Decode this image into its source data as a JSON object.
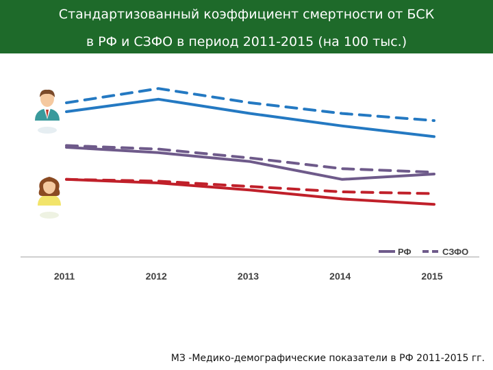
{
  "header": {
    "title_line1": "Стандартизованный коэффициент смертности от БСК",
    "title_line2": "в РФ  и СЗФО в период 2011-2015 (на 100 тыс.)"
  },
  "source": "МЗ -Медико-демографические показатели в РФ 2011-2015 гг.",
  "icons": {
    "male": "male-person-icon",
    "female": "female-person-icon"
  },
  "chart_data": {
    "type": "line",
    "categories": [
      "2011",
      "2012",
      "2013",
      "2014",
      "2015"
    ],
    "xlabel": "",
    "ylabel": "",
    "ylim": [
      0,
      100
    ],
    "grid": false,
    "legend": {
      "position": "bottom-right",
      "entries": [
        "РФ",
        "СЗФО"
      ]
    },
    "colors": {
      "male": "#2479c2",
      "total": "#6e5a8a",
      "female": "#c0202a"
    },
    "series": [
      {
        "group": "male",
        "legend_key": "РФ",
        "style": "solid",
        "values": [
          75,
          82,
          74,
          67,
          61
        ]
      },
      {
        "group": "male",
        "legend_key": "СЗФО",
        "style": "dashed",
        "values": [
          80,
          88,
          80,
          74,
          70
        ]
      },
      {
        "group": "total",
        "legend_key": "РФ",
        "style": "solid",
        "values": [
          55,
          52,
          47,
          37,
          40
        ]
      },
      {
        "group": "total",
        "legend_key": "СЗФО",
        "style": "dashed",
        "values": [
          56,
          54,
          49,
          43,
          41
        ]
      },
      {
        "group": "female",
        "legend_key": "РФ",
        "style": "solid",
        "values": [
          37,
          35,
          31,
          26,
          23
        ]
      },
      {
        "group": "female",
        "legend_key": "СЗФО",
        "style": "dashed",
        "values": [
          37,
          36,
          33,
          30,
          29
        ]
      }
    ]
  }
}
